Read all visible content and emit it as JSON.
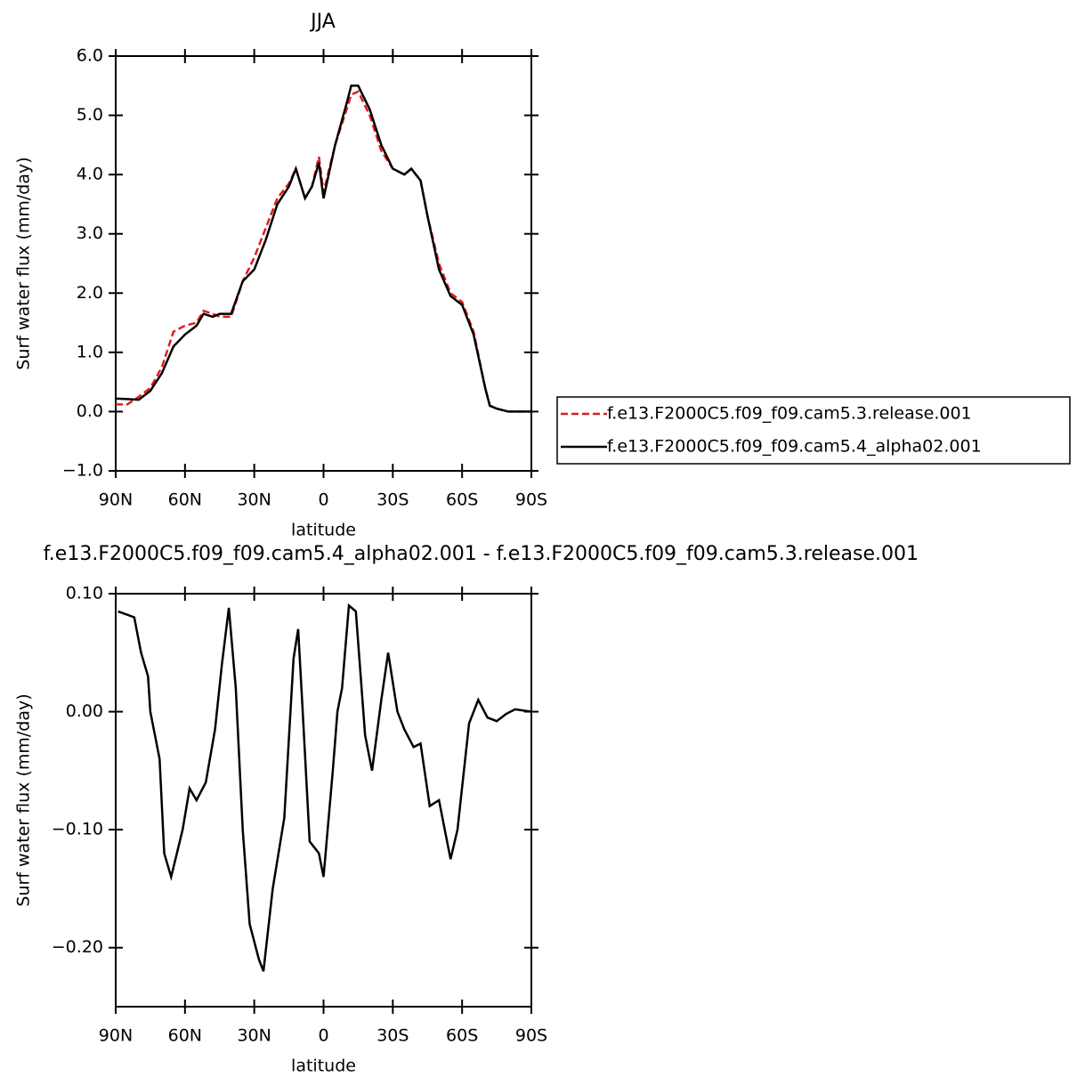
{
  "chart_data": [
    {
      "type": "line",
      "title": "JJA",
      "x_label": "latitude",
      "y_label": "Surf water flux (mm/day)",
      "x": [
        90,
        85,
        80,
        75,
        70,
        65,
        60,
        55,
        52,
        48,
        45,
        40,
        35,
        30,
        25,
        20,
        15,
        12,
        8,
        5,
        2,
        0,
        -5,
        -10,
        -12,
        -15,
        -20,
        -25,
        -30,
        -35,
        -38,
        -42,
        -45,
        -50,
        -55,
        -60,
        -65,
        -70,
        -72,
        -75,
        -80,
        -85,
        -90
      ],
      "series": [
        {
          "name": "f.e13.F2000C5.f09_f09.cam5.3.release.001",
          "color": "#e41a1c",
          "line_style": "dashed",
          "values": [
            0.12,
            0.12,
            0.25,
            0.4,
            0.75,
            1.35,
            1.45,
            1.5,
            1.7,
            1.65,
            1.6,
            1.6,
            2.2,
            2.6,
            3.1,
            3.6,
            3.85,
            4.1,
            3.6,
            3.8,
            4.3,
            3.7,
            4.5,
            5.1,
            5.35,
            5.4,
            5.0,
            4.4,
            4.1,
            4.0,
            4.1,
            3.9,
            3.3,
            2.5,
            2.0,
            1.85,
            1.35,
            0.4,
            0.1,
            0.05,
            0.0,
            0.0,
            0.0
          ]
        },
        {
          "name": "f.e13.F2000C5.f09_f09.cam5.4_alpha02.001",
          "color": "#000000",
          "line_style": "solid",
          "values": [
            0.22,
            0.21,
            0.2,
            0.35,
            0.65,
            1.1,
            1.3,
            1.45,
            1.65,
            1.6,
            1.65,
            1.65,
            2.2,
            2.4,
            2.9,
            3.5,
            3.8,
            4.1,
            3.6,
            3.8,
            4.2,
            3.6,
            4.5,
            5.2,
            5.5,
            5.5,
            5.1,
            4.5,
            4.1,
            4.0,
            4.1,
            3.9,
            3.3,
            2.4,
            1.95,
            1.8,
            1.3,
            0.4,
            0.1,
            0.05,
            0.0,
            0.0,
            0.0
          ]
        }
      ],
      "xlim": [
        90,
        -90
      ],
      "xticks": [
        {
          "value": 90,
          "label": "90N"
        },
        {
          "value": 60,
          "label": "60N"
        },
        {
          "value": 30,
          "label": "30N"
        },
        0,
        {
          "value": -30,
          "label": "30S"
        },
        {
          "value": -60,
          "label": "60S"
        },
        {
          "value": -90,
          "label": "90S"
        }
      ],
      "ylim": [
        -1,
        6
      ],
      "yticks": [
        {
          "value": 6,
          "label": "6.0"
        },
        {
          "value": 5,
          "label": "5.0"
        },
        {
          "value": 4,
          "label": "4.0"
        },
        {
          "value": 3,
          "label": "3.0"
        },
        {
          "value": 2,
          "label": "2.0"
        },
        {
          "value": 1,
          "label": "1.0"
        },
        {
          "value": 0,
          "label": "0.0"
        },
        {
          "value": -1,
          "label": "−1.0"
        }
      ],
      "legend": "right"
    },
    {
      "type": "line",
      "title": "f.e13.F2000C5.f09_f09.cam5.4_alpha02.001 - f.e13.F2000C5.f09_f09.cam5.3.release.001",
      "x_label": "latitude",
      "y_label": "Surf water flux (mm/day)",
      "x": [
        89,
        82,
        79,
        76,
        75,
        71,
        69,
        66,
        61,
        58,
        55,
        51,
        47,
        44,
        41,
        38,
        35,
        32,
        28,
        26,
        22,
        17,
        13,
        11,
        9,
        6,
        2,
        0,
        -4,
        -6,
        -8,
        -11,
        -14,
        -18,
        -21,
        -25,
        -28,
        -32,
        -35,
        -39,
        -42,
        -46,
        -50,
        -55,
        -58,
        -63,
        -67,
        -71,
        -75,
        -79,
        -83,
        -90
      ],
      "series": [
        {
          "color": "#000000",
          "line_style": "solid",
          "values": [
            0.085,
            0.08,
            0.05,
            0.03,
            0.0,
            -0.04,
            -0.12,
            -0.14,
            -0.1,
            -0.065,
            -0.075,
            -0.06,
            -0.015,
            0.04,
            0.088,
            0.02,
            -0.1,
            -0.18,
            -0.21,
            -0.22,
            -0.15,
            -0.09,
            0.045,
            0.07,
            0.0,
            -0.11,
            -0.12,
            -0.14,
            -0.05,
            0.0,
            0.02,
            0.09,
            0.085,
            -0.02,
            -0.05,
            0.01,
            0.05,
            0.0,
            -0.015,
            -0.03,
            -0.027,
            -0.08,
            -0.075,
            -0.125,
            -0.1,
            -0.01,
            0.01,
            -0.005,
            -0.008,
            -0.002,
            0.002,
            0.0
          ]
        }
      ],
      "xlim": [
        90,
        -90
      ],
      "xticks": [
        {
          "value": 90,
          "label": "90N"
        },
        {
          "value": 60,
          "label": "60N"
        },
        {
          "value": 30,
          "label": "30N"
        },
        0,
        {
          "value": -30,
          "label": "30S"
        },
        {
          "value": -60,
          "label": "60S"
        },
        {
          "value": -90,
          "label": "90S"
        }
      ],
      "ylim": [
        -0.25,
        0.1
      ],
      "yticks": [
        {
          "value": 0.1,
          "label": "0.10"
        },
        {
          "value": 0,
          "label": "0.00"
        },
        {
          "value": -0.1,
          "label": "−0.10"
        },
        {
          "value": -0.2,
          "label": "−0.20"
        }
      ]
    }
  ]
}
